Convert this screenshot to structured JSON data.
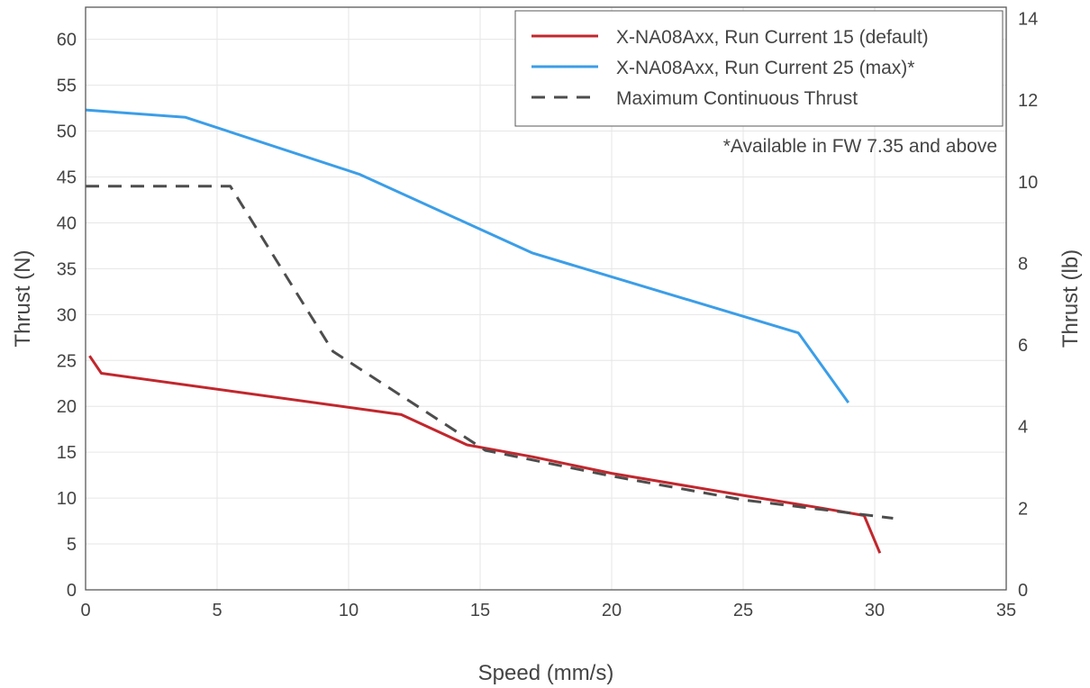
{
  "chart_data": {
    "type": "line",
    "xlabel": "Speed (mm/s)",
    "ylabel": "Thrust (N)",
    "ylabel_right": "Thrust (lb)",
    "xlim": [
      0,
      35
    ],
    "ylim": [
      0,
      63.5
    ],
    "ylim_right": [
      0,
      14.275
    ],
    "x_ticks": [
      0,
      5,
      10,
      15,
      20,
      25,
      30,
      35
    ],
    "y_ticks": [
      0,
      5,
      10,
      15,
      20,
      25,
      30,
      35,
      40,
      45,
      50,
      55,
      60
    ],
    "y_ticks_right": [
      0,
      2,
      4,
      6,
      8,
      10,
      12,
      14
    ],
    "grid": true,
    "legend_position": "top-right",
    "note": "*Available in FW 7.35 and above",
    "series": [
      {
        "name": "X-NA08Axx, Run Current 15 (default)",
        "color": "#c1272d",
        "style": "solid",
        "x": [
          0.15,
          0.6,
          12,
          14.5,
          17,
          20,
          25,
          28,
          29.6,
          30.2
        ],
        "y": [
          25.5,
          23.6,
          19.1,
          15.8,
          14.5,
          12.7,
          10.3,
          8.9,
          8.1,
          4
        ]
      },
      {
        "name": "X-NA08Axx, Run Current 25 (max)*",
        "color": "#3b9ee8",
        "style": "solid",
        "x": [
          0,
          3.8,
          10.4,
          17,
          27.1,
          29
        ],
        "y": [
          52.3,
          51.5,
          45.3,
          36.7,
          28,
          20.4
        ]
      },
      {
        "name": "Maximum Continuous Thrust",
        "color": "#4d4d4d",
        "style": "dashed",
        "x": [
          0,
          5.5,
          9.4,
          15.2,
          20,
          25,
          30.7
        ],
        "y": [
          44,
          44,
          26,
          15.2,
          12.4,
          9.8,
          7.8
        ]
      }
    ]
  }
}
